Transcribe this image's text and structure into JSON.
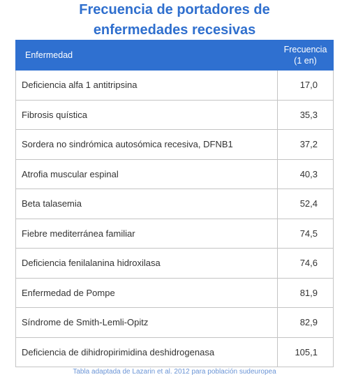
{
  "title": {
    "line1": "Frecuencia de portadores de",
    "line2": "enfermedades recesivas"
  },
  "chart_data": {
    "type": "table",
    "columns": [
      "Enfermedad",
      "Frecuencia (1 en)"
    ],
    "header": {
      "disease": "Enfermedad",
      "freq_line1": "Frecuencia",
      "freq_line2": "(1 en)"
    },
    "rows": [
      {
        "name": "Deficiencia alfa 1 antitripsina",
        "value": "17,0"
      },
      {
        "name": "Fibrosis quística",
        "value": "35,3"
      },
      {
        "name": "Sordera no sindrómica autosómica recesiva, DFNB1",
        "value": "37,2"
      },
      {
        "name": "Atrofia muscular espinal",
        "value": "40,3"
      },
      {
        "name": "Beta talasemia",
        "value": "52,4"
      },
      {
        "name": "Fiebre mediterránea familiar",
        "value": "74,5"
      },
      {
        "name": "Deficiencia fenilalanina hidroxilasa",
        "value": "74,6"
      },
      {
        "name": "Enfermedad de Pompe",
        "value": "81,9"
      },
      {
        "name": "Síndrome de Smith-Lemli-Opitz",
        "value": "82,9"
      },
      {
        "name": "Deficiencia de dihidropirimidina deshidrogenasa",
        "value": "105,1"
      }
    ]
  },
  "footnote": "Tabla adaptada de Lazarin et al. 2012 para población sudeuropea",
  "colors": {
    "accent": "#2f70d0",
    "header_text": "#ffffff",
    "border": "#c4c4c4"
  }
}
